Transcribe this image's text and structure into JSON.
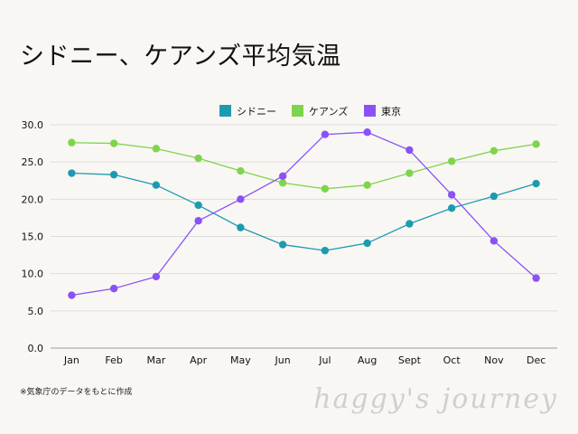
{
  "page": {
    "title": "シドニー、ケアンズ平均気温",
    "footnote": "※気象庁のデータをもとに作成",
    "watermark": "haggy's journey"
  },
  "chart_data": {
    "type": "line",
    "title": "シドニー、ケアンズ平均気温",
    "xlabel": "",
    "ylabel": "",
    "categories": [
      "Jan",
      "Feb",
      "Mar",
      "Apr",
      "May",
      "Jun",
      "Jul",
      "Aug",
      "Sept",
      "Oct",
      "Nov",
      "Dec"
    ],
    "ylim": [
      0,
      30
    ],
    "yticks": [
      "0.0",
      "5.0",
      "10.0",
      "15.0",
      "20.0",
      "25.0",
      "30.0"
    ],
    "grid": true,
    "legend_position": "top-center",
    "series": [
      {
        "name": "シドニー",
        "color": "#1c9bb0",
        "values": [
          23.5,
          23.3,
          21.9,
          19.2,
          16.2,
          13.9,
          13.1,
          14.1,
          16.7,
          18.8,
          20.4,
          22.1
        ]
      },
      {
        "name": "ケアンズ",
        "color": "#7fd44e",
        "values": [
          27.6,
          27.5,
          26.8,
          25.5,
          23.8,
          22.2,
          21.4,
          21.9,
          23.5,
          25.1,
          26.5,
          27.4
        ]
      },
      {
        "name": "東京",
        "color": "#8a52f5",
        "values": [
          7.1,
          8.0,
          9.6,
          17.1,
          20.0,
          23.1,
          28.7,
          29.0,
          26.6,
          20.6,
          14.4,
          9.4
        ]
      }
    ]
  }
}
